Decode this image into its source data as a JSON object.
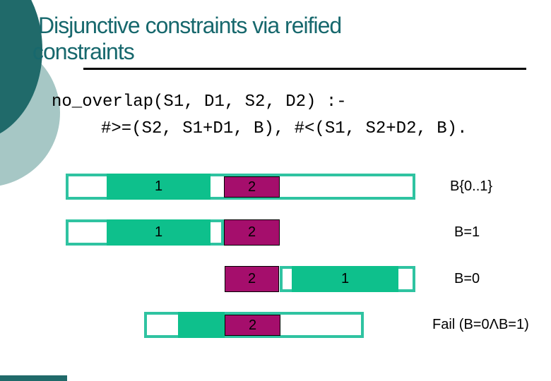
{
  "slide": {
    "title_line1": "Disjunctive constraints via reified",
    "title_line2": "constraints",
    "code_line1": "no_overlap(S1, D1, S2, D2) :-",
    "code_line2": "#>=(S2, S1+D1, B), #<(S1, S2+D2, B)."
  },
  "diagram": {
    "rows": [
      {
        "task1": "1",
        "task2": "2",
        "caption": "B{0..1}"
      },
      {
        "task1": "1",
        "task2": "2",
        "caption": "B=1"
      },
      {
        "task1": "1",
        "task2": "2",
        "caption": "B=0"
      },
      {
        "task2": "2",
        "caption": "Fail (B=0ΛB=1)"
      }
    ]
  },
  "colors": {
    "title_color": "#17686d",
    "circle_dark": "#206a6a",
    "circle_light": "#a6c7c5",
    "teal_border": "#2fc3a1",
    "teal_fill": "#0ec08c",
    "maroon": "#a50e6c"
  }
}
